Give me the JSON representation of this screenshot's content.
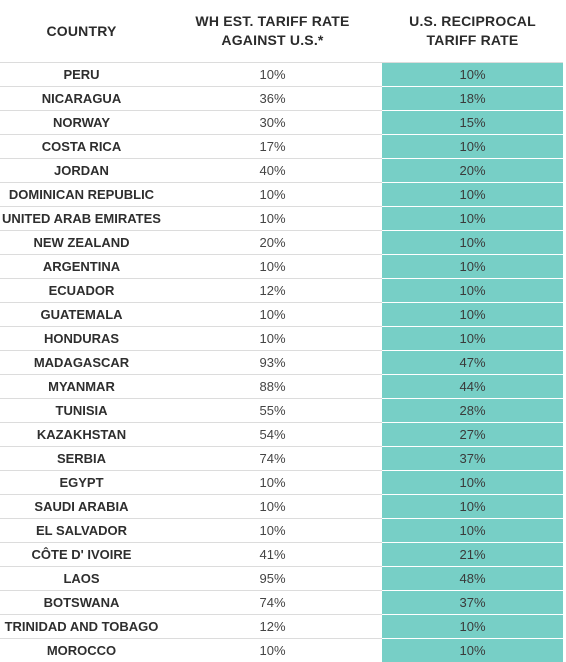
{
  "accent_color": "#77cfc6",
  "headers": {
    "country": "COUNTRY",
    "wh_line1": "WH EST. TARIFF RATE",
    "wh_line2": "AGAINST U.S.*",
    "us_line1": "U.S. RECIPROCAL",
    "us_line2": "TARIFF RATE"
  },
  "rows": [
    {
      "country": "PERU",
      "wh": "10%",
      "us": "10%"
    },
    {
      "country": "NICARAGUA",
      "wh": "36%",
      "us": "18%"
    },
    {
      "country": "NORWAY",
      "wh": "30%",
      "us": "15%"
    },
    {
      "country": "COSTA RICA",
      "wh": "17%",
      "us": "10%"
    },
    {
      "country": "JORDAN",
      "wh": "40%",
      "us": "20%"
    },
    {
      "country": "DOMINICAN REPUBLIC",
      "wh": "10%",
      "us": "10%"
    },
    {
      "country": "UNITED ARAB EMIRATES",
      "wh": "10%",
      "us": "10%"
    },
    {
      "country": "NEW ZEALAND",
      "wh": "20%",
      "us": "10%"
    },
    {
      "country": "ARGENTINA",
      "wh": "10%",
      "us": "10%"
    },
    {
      "country": "ECUADOR",
      "wh": "12%",
      "us": "10%"
    },
    {
      "country": "GUATEMALA",
      "wh": "10%",
      "us": "10%"
    },
    {
      "country": "HONDURAS",
      "wh": "10%",
      "us": "10%"
    },
    {
      "country": "MADAGASCAR",
      "wh": "93%",
      "us": "47%"
    },
    {
      "country": "MYANMAR",
      "wh": "88%",
      "us": "44%"
    },
    {
      "country": "TUNISIA",
      "wh": "55%",
      "us": "28%"
    },
    {
      "country": "KAZAKHSTAN",
      "wh": "54%",
      "us": "27%"
    },
    {
      "country": "SERBIA",
      "wh": "74%",
      "us": "37%"
    },
    {
      "country": "EGYPT",
      "wh": "10%",
      "us": "10%"
    },
    {
      "country": "SAUDI ARABIA",
      "wh": "10%",
      "us": "10%"
    },
    {
      "country": "EL SALVADOR",
      "wh": "10%",
      "us": "10%"
    },
    {
      "country": "CÔTE D' IVOIRE",
      "wh": "41%",
      "us": "21%"
    },
    {
      "country": "LAOS",
      "wh": "95%",
      "us": "48%"
    },
    {
      "country": "BOTSWANA",
      "wh": "74%",
      "us": "37%"
    },
    {
      "country": "TRINIDAD AND TOBAGO",
      "wh": "12%",
      "us": "10%"
    },
    {
      "country": "MOROCCO",
      "wh": "10%",
      "us": "10%"
    }
  ]
}
